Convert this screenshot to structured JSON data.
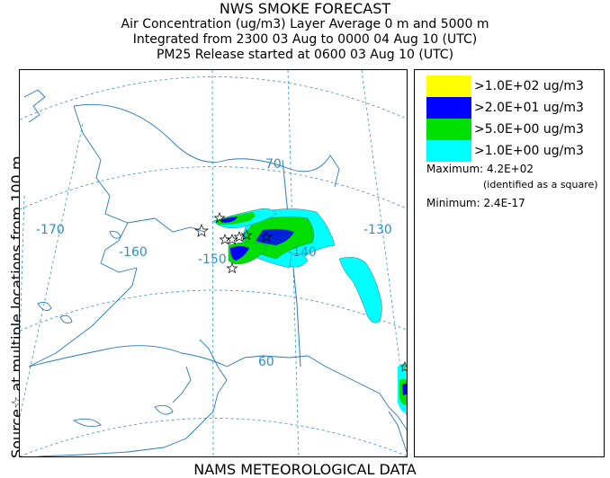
{
  "header": {
    "title": "NWS SMOKE FORECAST",
    "line2": "Air Concentration (ug/m3) Layer Average    0 m and  5000 m",
    "line3": "Integrated from 2300 03 Aug to 0000 04 Aug 10 (UTC)",
    "line4": "PM25 Release started at 0600 03 Aug 10 (UTC)"
  },
  "side_label": "Source☆  at multiple locations   from   100 m",
  "footer": "NAMS METEOROLOGICAL DATA",
  "map": {
    "lon_labels": [
      "-170",
      "-160",
      "-150",
      "-140",
      "-130"
    ],
    "lat_labels": [
      "70",
      "60"
    ]
  },
  "legend": {
    "items": [
      {
        "label": ">1.0E+02 ug/m3",
        "color": "#ffff00"
      },
      {
        "label": ">2.0E+01 ug/m3",
        "color": "#0000ff"
      },
      {
        "label": ">5.0E+00 ug/m3",
        "color": "#00e000"
      },
      {
        "label": ">1.0E+00 ug/m3",
        "color": "#00ffff"
      }
    ],
    "maximum_label": "Maximum:",
    "maximum_value": "4.2E+02",
    "maximum_note": "(identified as a square)",
    "minimum_label": "Minimum:",
    "minimum_value": "2.4E-17"
  },
  "colors": {
    "grid": "#3a8fc8",
    "coast": "#2a7ab8",
    "plume_light": "#00ffff",
    "plume_mid": "#00e000",
    "plume_high": "#0000ff",
    "plume_max": "#ffff00"
  }
}
